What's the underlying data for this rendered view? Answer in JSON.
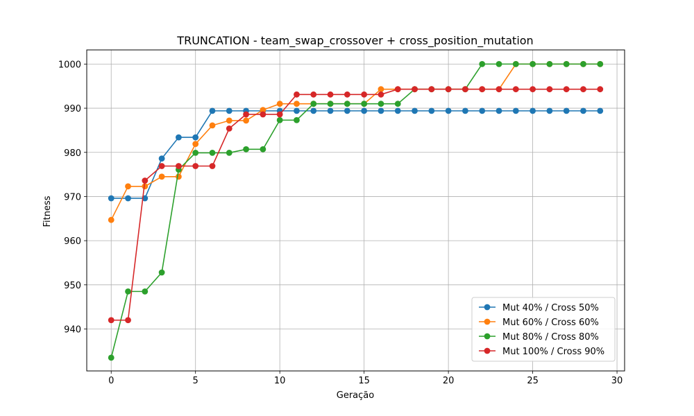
{
  "chart_data": {
    "type": "line",
    "title": "TRUNCATION - team_swap_crossover + cross_position_mutation",
    "xlabel": "Geração",
    "ylabel": "Fitness",
    "xlim": [
      -1.45,
      30.45
    ],
    "ylim": [
      930.5,
      1003.2
    ],
    "xticks": [
      0,
      5,
      10,
      15,
      20,
      25,
      30
    ],
    "yticks": [
      940,
      950,
      960,
      970,
      980,
      990,
      1000
    ],
    "grid": true,
    "legend_position": "lower-right",
    "x": [
      0,
      1,
      2,
      3,
      4,
      5,
      6,
      7,
      8,
      9,
      10,
      11,
      12,
      13,
      14,
      15,
      16,
      17,
      18,
      19,
      20,
      21,
      22,
      23,
      24,
      25,
      26,
      27,
      28,
      29
    ],
    "series": [
      {
        "name": "Mut 40% / Cross 50%",
        "color": "#1f77b4",
        "values": [
          969.6,
          969.6,
          969.6,
          978.6,
          983.4,
          983.4,
          989.4,
          989.4,
          989.4,
          989.4,
          989.4,
          989.4,
          989.4,
          989.4,
          989.4,
          989.4,
          989.4,
          989.4,
          989.4,
          989.4,
          989.4,
          989.4,
          989.4,
          989.4,
          989.4,
          989.4,
          989.4,
          989.4,
          989.4,
          989.4
        ]
      },
      {
        "name": "Mut 60% / Cross 60%",
        "color": "#ff7f0e",
        "values": [
          964.7,
          972.3,
          972.3,
          974.5,
          974.5,
          981.9,
          986.1,
          987.2,
          987.2,
          989.6,
          991.0,
          991.0,
          991.0,
          991.0,
          991.0,
          991.0,
          994.3,
          994.3,
          994.3,
          994.3,
          994.3,
          994.3,
          994.3,
          994.3,
          1000,
          1000,
          1000,
          1000,
          1000,
          1000
        ]
      },
      {
        "name": "Mut 80% / Cross 80%",
        "color": "#2ca02c",
        "values": [
          933.5,
          948.5,
          948.5,
          952.8,
          976.1,
          979.9,
          979.9,
          979.9,
          980.7,
          980.7,
          987.3,
          987.3,
          991.0,
          991.0,
          991.0,
          991.0,
          991.0,
          991.0,
          994.3,
          994.3,
          994.3,
          994.3,
          1000,
          1000,
          1000,
          1000,
          1000,
          1000,
          1000,
          1000
        ]
      },
      {
        "name": "Mut 100% / Cross 90%",
        "color": "#d62728",
        "values": [
          942.0,
          942.0,
          973.6,
          976.9,
          976.9,
          976.9,
          976.9,
          985.4,
          988.6,
          988.6,
          988.6,
          993.1,
          993.1,
          993.1,
          993.1,
          993.1,
          993.1,
          994.3,
          994.3,
          994.3,
          994.3,
          994.3,
          994.3,
          994.3,
          994.3,
          994.3,
          994.3,
          994.3,
          994.3,
          994.3
        ]
      }
    ]
  }
}
